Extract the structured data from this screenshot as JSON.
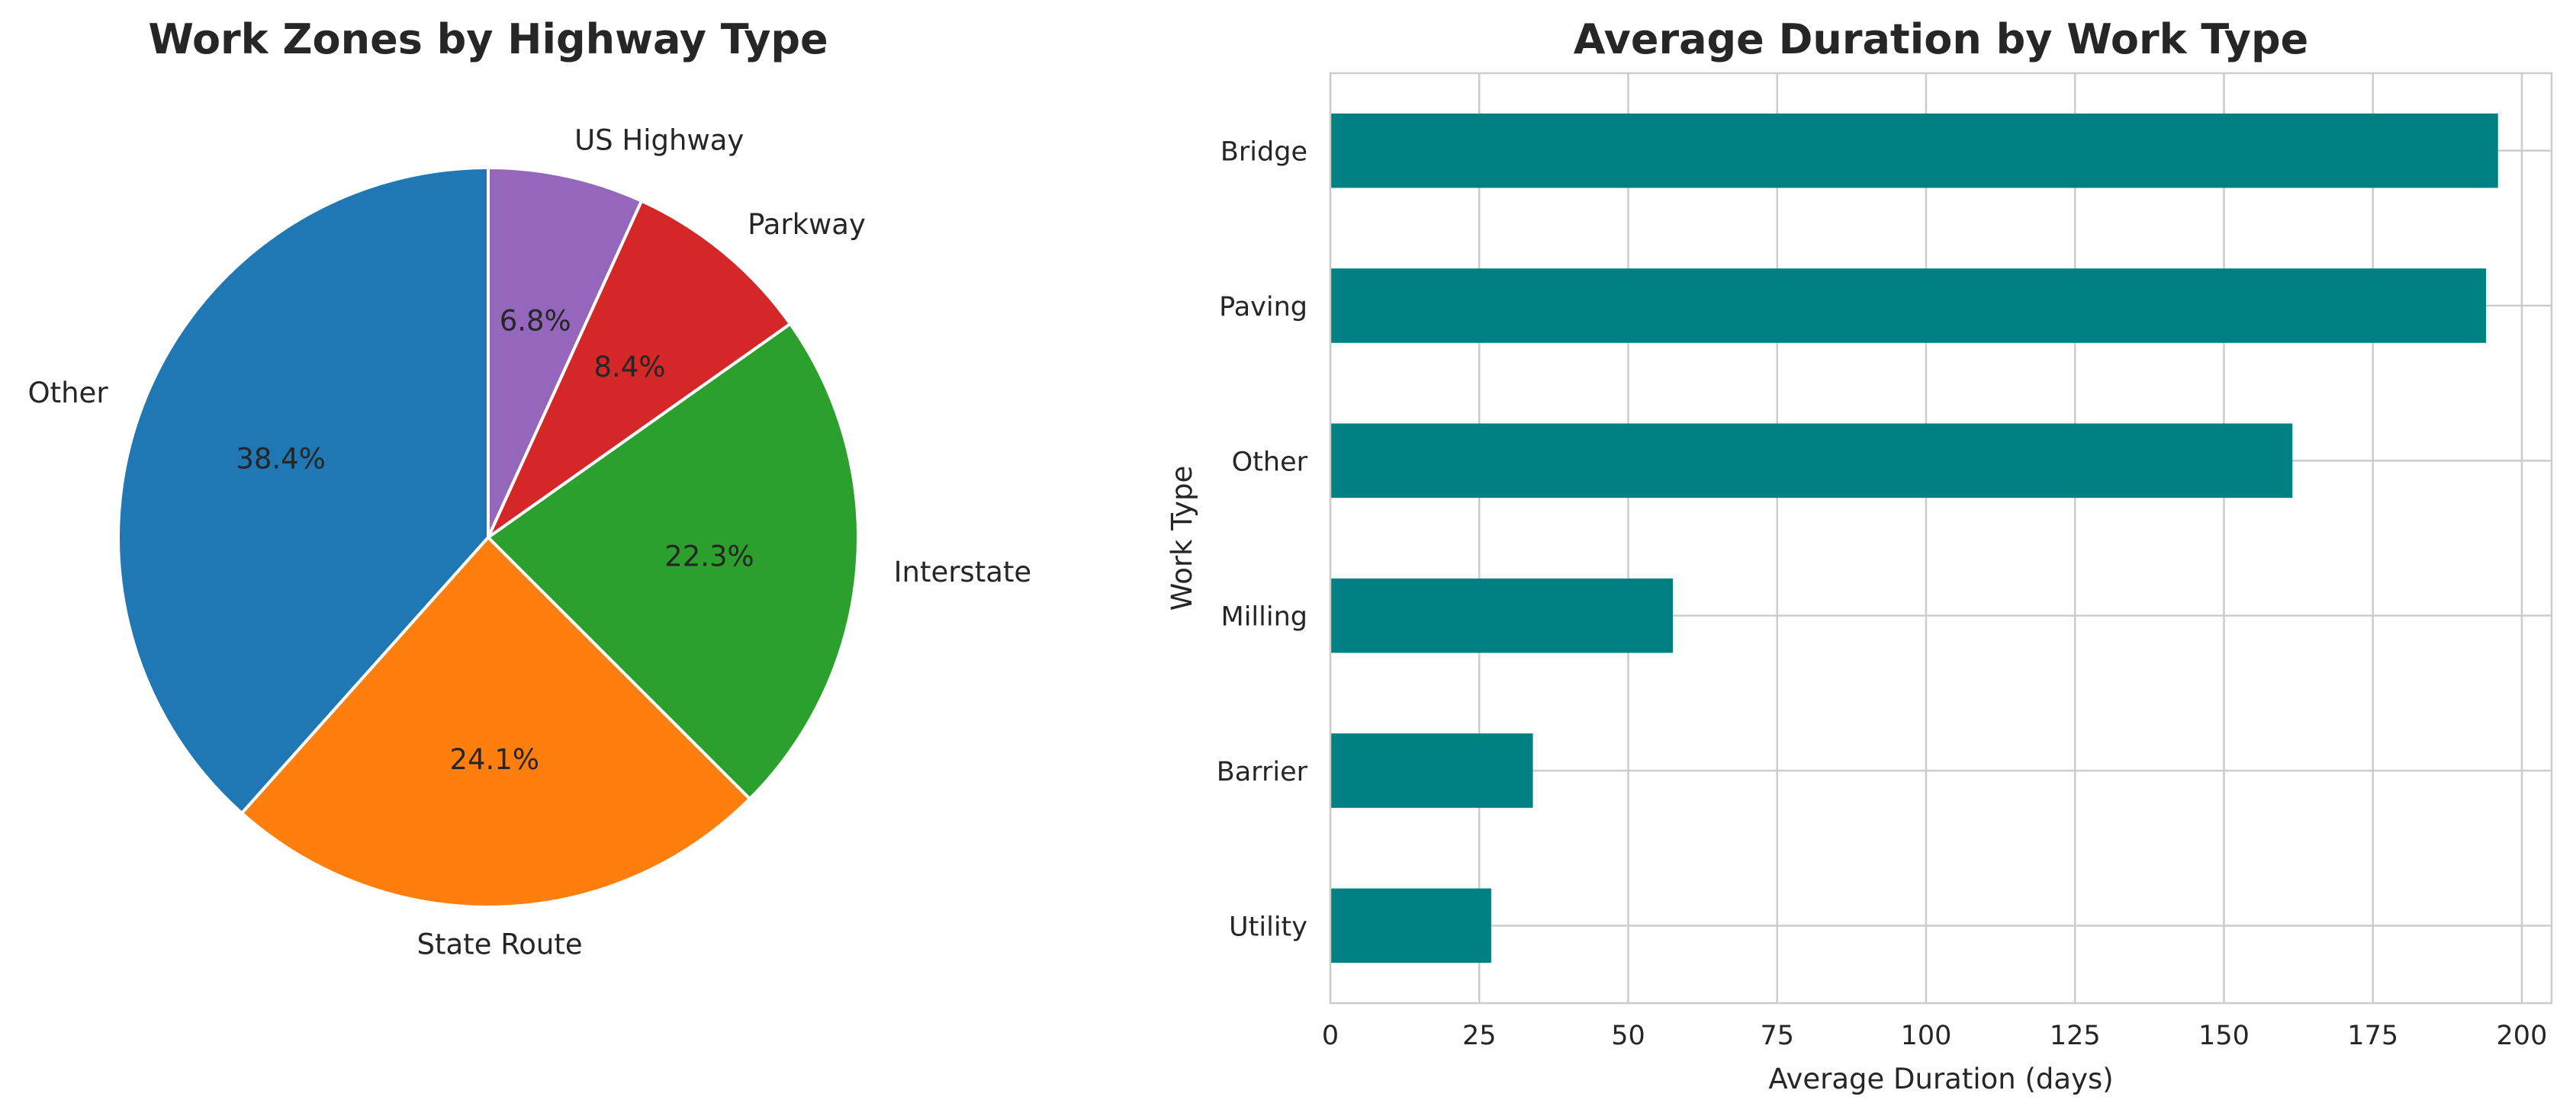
{
  "chart_data": [
    {
      "type": "pie",
      "title": "Work Zones by Highway Type",
      "slices": [
        {
          "label": "Other",
          "value": 38.4,
          "pct_label": "38.4%",
          "color": "#1f77b4"
        },
        {
          "label": "State Route",
          "value": 24.1,
          "pct_label": "24.1%",
          "color": "#ff7f0e"
        },
        {
          "label": "Interstate",
          "value": 22.3,
          "pct_label": "22.3%",
          "color": "#2ca02c"
        },
        {
          "label": "Parkway",
          "value": 8.4,
          "pct_label": "8.4%",
          "color": "#d62728"
        },
        {
          "label": "US Highway",
          "value": 6.8,
          "pct_label": "6.8%",
          "color": "#9467bd"
        }
      ],
      "start_angle_deg": 90,
      "direction": "counterclockwise"
    },
    {
      "type": "bar",
      "orientation": "horizontal",
      "title": "Average Duration by Work Type",
      "xlabel": "Average Duration (days)",
      "ylabel": "Work Type",
      "categories": [
        "Bridge",
        "Paving",
        "Other",
        "Milling",
        "Barrier",
        "Utility"
      ],
      "values": [
        196,
        194,
        161.5,
        57.5,
        34,
        27
      ],
      "xlim": [
        0,
        205
      ],
      "xticks": [
        0,
        25,
        50,
        75,
        100,
        125,
        150,
        175,
        200
      ],
      "bar_color": "#008080",
      "grid": true
    }
  ]
}
